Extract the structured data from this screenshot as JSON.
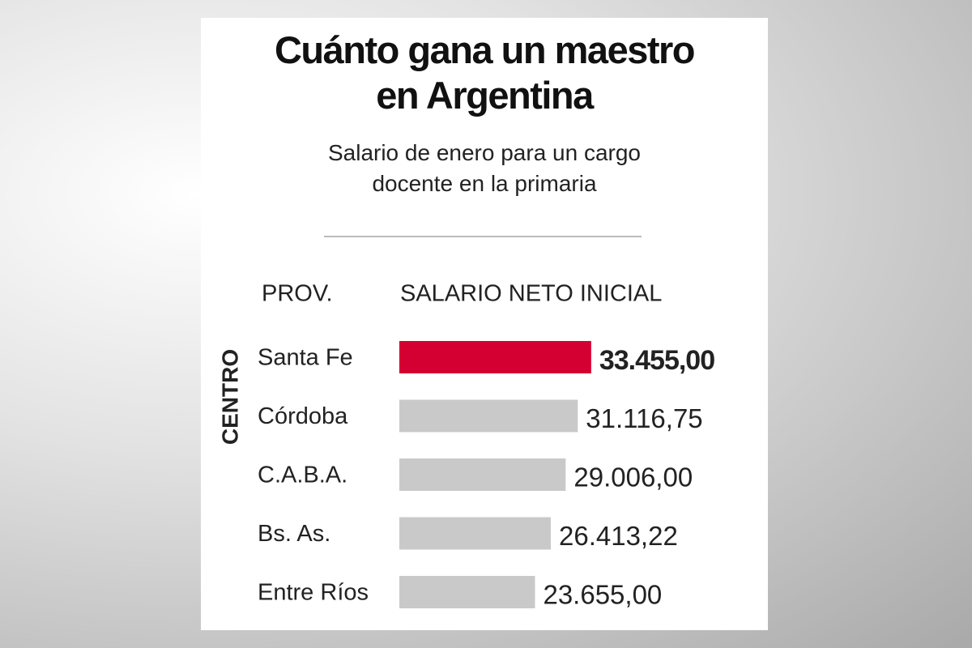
{
  "chart_data": {
    "type": "bar",
    "title": "Cuánto gana un maestro en Argentina",
    "subtitle": "Salario de enero para un cargo docente en la primaria",
    "category_header": "PROV.",
    "value_header": "SALARIO NETO INICIAL",
    "group_label": "CENTRO",
    "categories": [
      "Santa Fe",
      "Córdoba",
      "C.A.B.A.",
      "Bs. As.",
      "Entre Ríos"
    ],
    "values": [
      33455,
      31116.75,
      29006,
      26413.22,
      23655
    ],
    "value_labels": [
      "33.455,00",
      "31.116,75",
      "29.006,00",
      "26.413,22",
      "23.655,00"
    ],
    "colors": [
      "#d50032",
      "#c9c9c9",
      "#c9c9c9",
      "#c9c9c9",
      "#c9c9c9"
    ]
  }
}
